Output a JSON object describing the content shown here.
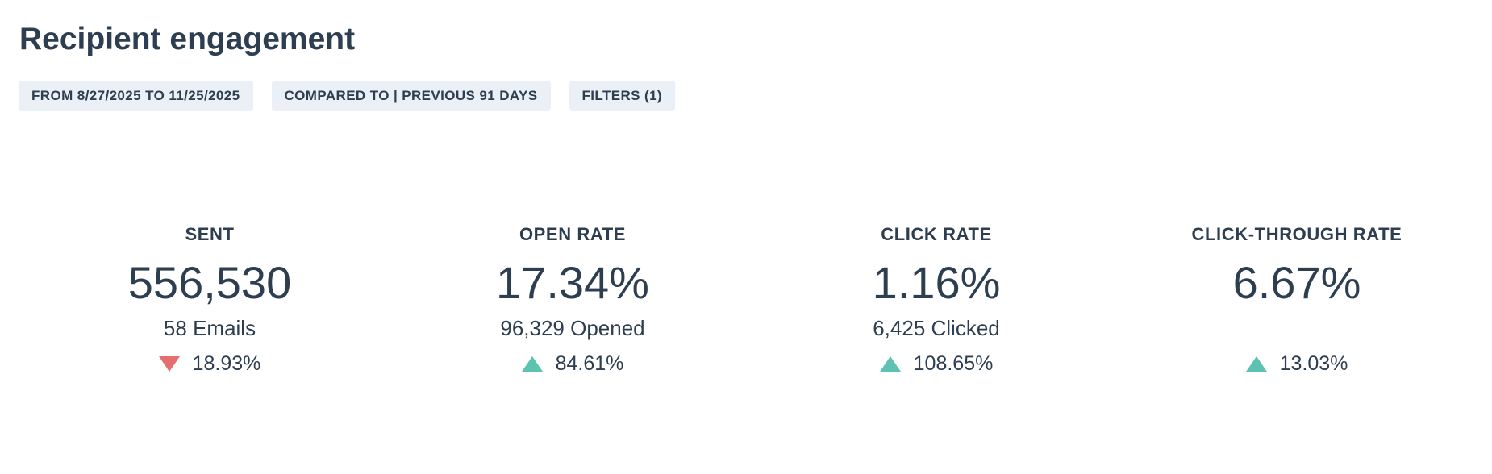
{
  "header": {
    "title": "Recipient engagement"
  },
  "filters": {
    "date_range": "FROM 8/27/2025 TO 11/25/2025",
    "comparison": "COMPARED TO | PREVIOUS 91 DAYS",
    "filters": "FILTERS (1)"
  },
  "colors": {
    "increase": "#5ec2b2",
    "decrease": "#e66e6e",
    "chip_background": "#eaf0f6",
    "text": "#2d3e50"
  },
  "metrics": [
    {
      "label": "SENT",
      "value": "556,530",
      "sub": "58 Emails",
      "change": "18.93%",
      "direction": "down",
      "icon": "triangle-down-icon"
    },
    {
      "label": "OPEN RATE",
      "value": "17.34%",
      "sub": "96,329 Opened",
      "change": "84.61%",
      "direction": "up",
      "icon": "triangle-up-icon"
    },
    {
      "label": "CLICK RATE",
      "value": "1.16%",
      "sub": "6,425 Clicked",
      "change": "108.65%",
      "direction": "up",
      "icon": "triangle-up-icon"
    },
    {
      "label": "CLICK-THROUGH RATE",
      "value": "6.67%",
      "sub": "",
      "change": "13.03%",
      "direction": "up",
      "icon": "triangle-up-icon"
    }
  ]
}
